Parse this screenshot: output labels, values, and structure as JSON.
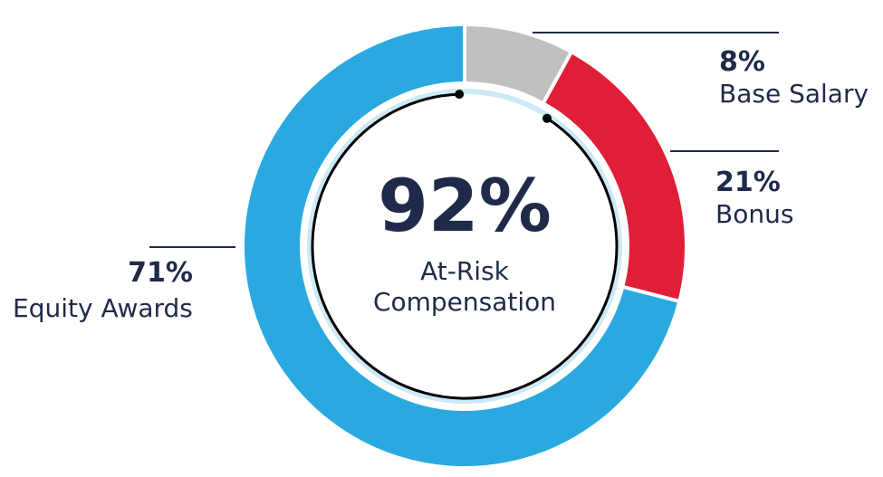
{
  "chart_data": {
    "type": "pie",
    "style": "donut",
    "start": "top",
    "direction": "clockwise",
    "slices": [
      {
        "key": "base",
        "label": "Base Salary",
        "percent_label": "8%",
        "value": 8,
        "color": "#c0c0c0"
      },
      {
        "key": "bonus",
        "label": "Bonus",
        "percent_label": "21%",
        "value": 21,
        "color": "#e01e37"
      },
      {
        "key": "equity",
        "label": "Equity Awards",
        "percent_label": "71%",
        "value": 71,
        "color": "#29a9e0"
      }
    ],
    "center": {
      "value": "92%",
      "caption_line1": "At-Risk",
      "caption_line2": "Compensation"
    },
    "annotation": {
      "type": "arc-with-dots",
      "spans": [
        "bonus",
        "equity"
      ],
      "color": "#000000"
    },
    "inner_ring_color": "#cde9f6",
    "text_color": "#1f2a4a",
    "divider_color": "#ffffff"
  }
}
